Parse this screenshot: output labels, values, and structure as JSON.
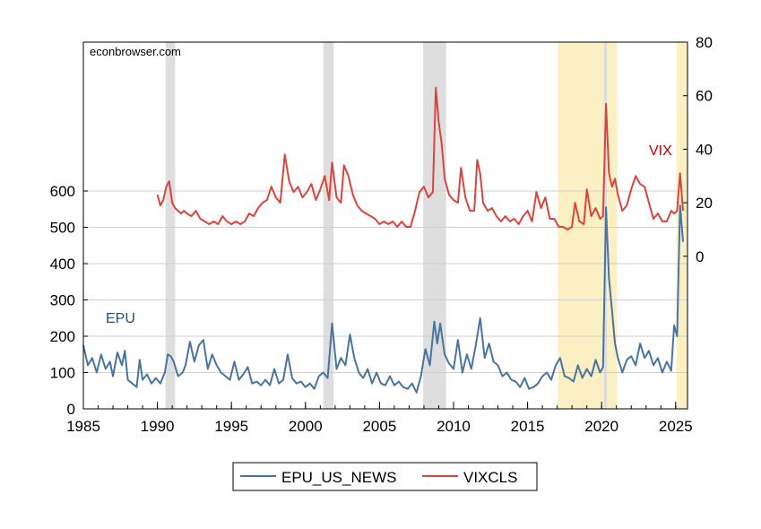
{
  "chart_data": {
    "type": "line",
    "watermark": "econbrowser.com",
    "annotations": [
      {
        "text": "EPU",
        "color": "#1f4e79"
      },
      {
        "text": "VIX",
        "color": "#c00000"
      }
    ],
    "x_axis": {
      "range": [
        1985,
        2025.8
      ],
      "ticks": [
        "1985",
        "1990",
        "1995",
        "2000",
        "2005",
        "2010",
        "2015",
        "2020",
        "2025"
      ]
    },
    "y_left": {
      "range": [
        0,
        1010
      ],
      "ticks": [
        "0",
        "100",
        "200",
        "300",
        "400",
        "500",
        "600"
      ]
    },
    "y_right": {
      "range": [
        -57,
        80
      ],
      "ticks": [
        "0",
        "20",
        "40",
        "60",
        "80"
      ]
    },
    "grid": true,
    "legend": {
      "placement": "bottom-center",
      "entries": [
        {
          "name": "EPU_US_NEWS",
          "color": "#4a74a0"
        },
        {
          "name": "VIXCLS",
          "color": "#d9453d"
        }
      ]
    },
    "recessions": [
      [
        1990.55,
        1991.2
      ],
      [
        2001.2,
        2001.9
      ],
      [
        2007.95,
        2009.5
      ],
      [
        2020.15,
        2020.35
      ]
    ],
    "highlights": [
      [
        2017.05,
        2021.05
      ],
      [
        2025.05,
        2025.8
      ]
    ],
    "colors": {
      "recession": "#dedede",
      "highlight": "#fbefc4",
      "epu": "#4a74a0",
      "vix": "#d9453d",
      "grid": "#d0d0d0"
    },
    "series": [
      {
        "name": "EPU_US_NEWS",
        "axis": "left",
        "points": [
          [
            1985.0,
            175
          ],
          [
            1985.3,
            120
          ],
          [
            1985.6,
            140
          ],
          [
            1985.9,
            100
          ],
          [
            1986.2,
            150
          ],
          [
            1986.5,
            110
          ],
          [
            1986.8,
            130
          ],
          [
            1987.0,
            90
          ],
          [
            1987.3,
            155
          ],
          [
            1987.6,
            120
          ],
          [
            1987.8,
            160
          ],
          [
            1988.0,
            80
          ],
          [
            1988.3,
            70
          ],
          [
            1988.6,
            60
          ],
          [
            1988.8,
            135
          ],
          [
            1989.0,
            80
          ],
          [
            1989.3,
            95
          ],
          [
            1989.6,
            70
          ],
          [
            1989.9,
            85
          ],
          [
            1990.2,
            70
          ],
          [
            1990.5,
            100
          ],
          [
            1990.7,
            150
          ],
          [
            1990.9,
            145
          ],
          [
            1991.1,
            130
          ],
          [
            1991.4,
            90
          ],
          [
            1991.7,
            100
          ],
          [
            1991.9,
            120
          ],
          [
            1992.2,
            185
          ],
          [
            1992.5,
            130
          ],
          [
            1992.8,
            175
          ],
          [
            1993.1,
            190
          ],
          [
            1993.4,
            110
          ],
          [
            1993.7,
            150
          ],
          [
            1994.0,
            120
          ],
          [
            1994.3,
            100
          ],
          [
            1994.6,
            90
          ],
          [
            1994.9,
            80
          ],
          [
            1995.2,
            130
          ],
          [
            1995.5,
            80
          ],
          [
            1995.8,
            95
          ],
          [
            1996.1,
            115
          ],
          [
            1996.4,
            70
          ],
          [
            1996.7,
            75
          ],
          [
            1997.0,
            65
          ],
          [
            1997.3,
            80
          ],
          [
            1997.6,
            65
          ],
          [
            1997.9,
            110
          ],
          [
            1998.2,
            70
          ],
          [
            1998.5,
            80
          ],
          [
            1998.8,
            150
          ],
          [
            1999.1,
            85
          ],
          [
            1999.4,
            70
          ],
          [
            1999.7,
            75
          ],
          [
            2000.0,
            60
          ],
          [
            2000.3,
            70
          ],
          [
            2000.6,
            55
          ],
          [
            2000.9,
            90
          ],
          [
            2001.2,
            100
          ],
          [
            2001.5,
            85
          ],
          [
            2001.8,
            235
          ],
          [
            2002.1,
            110
          ],
          [
            2002.4,
            140
          ],
          [
            2002.7,
            120
          ],
          [
            2003.0,
            205
          ],
          [
            2003.3,
            140
          ],
          [
            2003.6,
            100
          ],
          [
            2003.9,
            85
          ],
          [
            2004.2,
            110
          ],
          [
            2004.5,
            70
          ],
          [
            2004.8,
            100
          ],
          [
            2005.1,
            70
          ],
          [
            2005.4,
            65
          ],
          [
            2005.7,
            90
          ],
          [
            2006.0,
            65
          ],
          [
            2006.3,
            75
          ],
          [
            2006.6,
            60
          ],
          [
            2006.9,
            55
          ],
          [
            2007.2,
            70
          ],
          [
            2007.5,
            45
          ],
          [
            2007.8,
            90
          ],
          [
            2008.1,
            165
          ],
          [
            2008.4,
            120
          ],
          [
            2008.7,
            240
          ],
          [
            2008.9,
            180
          ],
          [
            2009.1,
            235
          ],
          [
            2009.4,
            150
          ],
          [
            2009.7,
            125
          ],
          [
            2010.0,
            110
          ],
          [
            2010.3,
            190
          ],
          [
            2010.6,
            100
          ],
          [
            2010.9,
            150
          ],
          [
            2011.2,
            110
          ],
          [
            2011.5,
            175
          ],
          [
            2011.8,
            250
          ],
          [
            2012.1,
            140
          ],
          [
            2012.4,
            180
          ],
          [
            2012.7,
            130
          ],
          [
            2013.0,
            120
          ],
          [
            2013.3,
            90
          ],
          [
            2013.6,
            100
          ],
          [
            2013.9,
            80
          ],
          [
            2014.2,
            75
          ],
          [
            2014.5,
            60
          ],
          [
            2014.8,
            85
          ],
          [
            2015.1,
            55
          ],
          [
            2015.4,
            60
          ],
          [
            2015.7,
            70
          ],
          [
            2016.0,
            90
          ],
          [
            2016.3,
            100
          ],
          [
            2016.6,
            80
          ],
          [
            2016.9,
            120
          ],
          [
            2017.2,
            140
          ],
          [
            2017.5,
            90
          ],
          [
            2017.8,
            85
          ],
          [
            2018.1,
            75
          ],
          [
            2018.4,
            120
          ],
          [
            2018.7,
            85
          ],
          [
            2019.0,
            110
          ],
          [
            2019.3,
            90
          ],
          [
            2019.6,
            135
          ],
          [
            2019.9,
            100
          ],
          [
            2020.1,
            115
          ],
          [
            2020.3,
            555
          ],
          [
            2020.5,
            360
          ],
          [
            2020.7,
            270
          ],
          [
            2020.9,
            180
          ],
          [
            2021.1,
            140
          ],
          [
            2021.4,
            100
          ],
          [
            2021.7,
            135
          ],
          [
            2022.0,
            145
          ],
          [
            2022.3,
            120
          ],
          [
            2022.6,
            180
          ],
          [
            2022.9,
            140
          ],
          [
            2023.2,
            160
          ],
          [
            2023.5,
            120
          ],
          [
            2023.8,
            140
          ],
          [
            2024.1,
            100
          ],
          [
            2024.4,
            130
          ],
          [
            2024.7,
            105
          ],
          [
            2024.9,
            230
          ],
          [
            2025.1,
            200
          ],
          [
            2025.3,
            560
          ],
          [
            2025.5,
            460
          ]
        ]
      },
      {
        "name": "VIXCLS",
        "axis": "right",
        "points": [
          [
            1990.0,
            23
          ],
          [
            1990.2,
            19
          ],
          [
            1990.4,
            21
          ],
          [
            1990.6,
            26
          ],
          [
            1990.8,
            28
          ],
          [
            1991.0,
            20
          ],
          [
            1991.2,
            18
          ],
          [
            1991.4,
            17
          ],
          [
            1991.6,
            16
          ],
          [
            1991.8,
            17
          ],
          [
            1992.0,
            16
          ],
          [
            1992.3,
            15
          ],
          [
            1992.6,
            17
          ],
          [
            1992.9,
            14
          ],
          [
            1993.2,
            13
          ],
          [
            1993.5,
            12
          ],
          [
            1993.8,
            13
          ],
          [
            1994.1,
            12
          ],
          [
            1994.4,
            15
          ],
          [
            1994.7,
            13
          ],
          [
            1995.0,
            12
          ],
          [
            1995.3,
            13
          ],
          [
            1995.6,
            12
          ],
          [
            1995.9,
            13
          ],
          [
            1996.2,
            16
          ],
          [
            1996.5,
            15
          ],
          [
            1996.8,
            18
          ],
          [
            1997.1,
            20
          ],
          [
            1997.4,
            21
          ],
          [
            1997.7,
            26
          ],
          [
            1998.0,
            22
          ],
          [
            1998.3,
            20
          ],
          [
            1998.6,
            38
          ],
          [
            1998.9,
            28
          ],
          [
            1999.2,
            24
          ],
          [
            1999.5,
            26
          ],
          [
            1999.8,
            22
          ],
          [
            2000.1,
            24
          ],
          [
            2000.4,
            27
          ],
          [
            2000.7,
            21
          ],
          [
            2001.0,
            25
          ],
          [
            2001.3,
            30
          ],
          [
            2001.6,
            21
          ],
          [
            2001.8,
            35
          ],
          [
            2002.1,
            22
          ],
          [
            2002.4,
            20
          ],
          [
            2002.6,
            34
          ],
          [
            2002.9,
            30
          ],
          [
            2003.2,
            23
          ],
          [
            2003.5,
            19
          ],
          [
            2003.8,
            17
          ],
          [
            2004.1,
            16
          ],
          [
            2004.4,
            15
          ],
          [
            2004.7,
            14
          ],
          [
            2005.0,
            12
          ],
          [
            2005.3,
            13
          ],
          [
            2005.6,
            12
          ],
          [
            2005.9,
            13
          ],
          [
            2006.2,
            11
          ],
          [
            2006.5,
            13
          ],
          [
            2006.8,
            11
          ],
          [
            2007.1,
            11
          ],
          [
            2007.4,
            17
          ],
          [
            2007.7,
            24
          ],
          [
            2008.0,
            26
          ],
          [
            2008.3,
            22
          ],
          [
            2008.6,
            24
          ],
          [
            2008.8,
            63
          ],
          [
            2009.0,
            50
          ],
          [
            2009.2,
            42
          ],
          [
            2009.4,
            29
          ],
          [
            2009.7,
            23
          ],
          [
            2010.0,
            21
          ],
          [
            2010.3,
            20
          ],
          [
            2010.5,
            33
          ],
          [
            2010.8,
            22
          ],
          [
            2011.1,
            17
          ],
          [
            2011.4,
            17
          ],
          [
            2011.6,
            36
          ],
          [
            2011.8,
            31
          ],
          [
            2012.0,
            20
          ],
          [
            2012.3,
            17
          ],
          [
            2012.6,
            18
          ],
          [
            2012.9,
            15
          ],
          [
            2013.2,
            13
          ],
          [
            2013.5,
            15
          ],
          [
            2013.8,
            13
          ],
          [
            2014.1,
            14
          ],
          [
            2014.4,
            12
          ],
          [
            2014.7,
            15
          ],
          [
            2015.0,
            17
          ],
          [
            2015.3,
            13
          ],
          [
            2015.6,
            24
          ],
          [
            2015.9,
            18
          ],
          [
            2016.2,
            22
          ],
          [
            2016.5,
            14
          ],
          [
            2016.8,
            14
          ],
          [
            2017.1,
            11
          ],
          [
            2017.4,
            11
          ],
          [
            2017.7,
            10
          ],
          [
            2018.0,
            11
          ],
          [
            2018.2,
            20
          ],
          [
            2018.5,
            13
          ],
          [
            2018.8,
            12
          ],
          [
            2019.0,
            25
          ],
          [
            2019.3,
            15
          ],
          [
            2019.6,
            18
          ],
          [
            2019.9,
            14
          ],
          [
            2020.1,
            15
          ],
          [
            2020.3,
            57
          ],
          [
            2020.5,
            31
          ],
          [
            2020.7,
            26
          ],
          [
            2020.9,
            29
          ],
          [
            2021.1,
            23
          ],
          [
            2021.4,
            17
          ],
          [
            2021.7,
            19
          ],
          [
            2022.0,
            25
          ],
          [
            2022.3,
            30
          ],
          [
            2022.6,
            27
          ],
          [
            2022.9,
            26
          ],
          [
            2023.2,
            20
          ],
          [
            2023.5,
            14
          ],
          [
            2023.8,
            16
          ],
          [
            2024.1,
            13
          ],
          [
            2024.4,
            13
          ],
          [
            2024.7,
            17
          ],
          [
            2024.9,
            16
          ],
          [
            2025.1,
            17
          ],
          [
            2025.3,
            31
          ],
          [
            2025.5,
            17
          ]
        ]
      }
    ]
  }
}
